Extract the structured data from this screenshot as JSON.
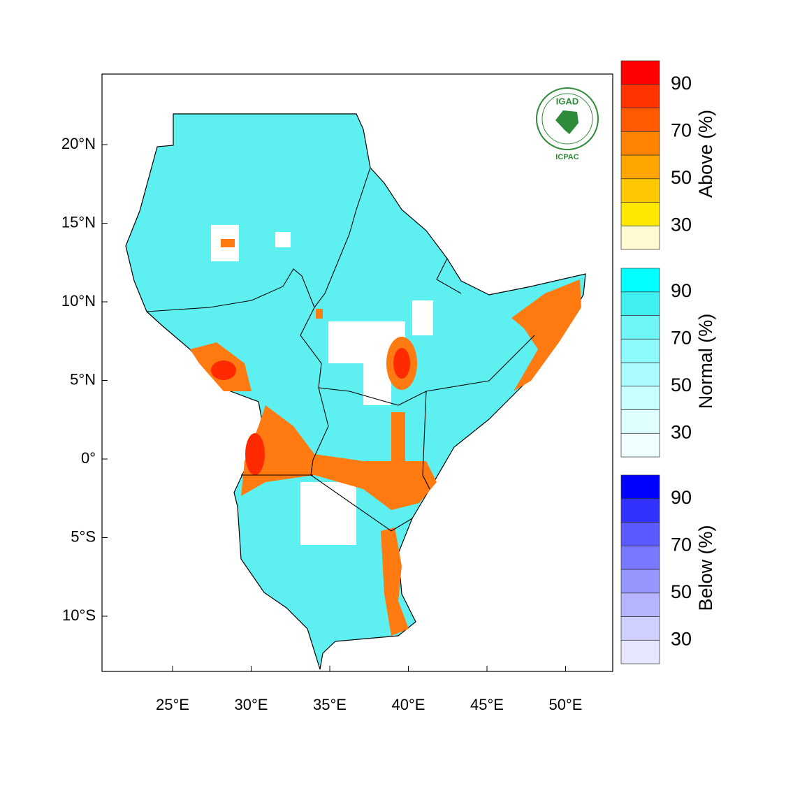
{
  "map": {
    "lon_ticks": [
      {
        "value": 25,
        "label": "25°E"
      },
      {
        "value": 30,
        "label": "30°E"
      },
      {
        "value": 35,
        "label": "35°E"
      },
      {
        "value": 40,
        "label": "40°E"
      },
      {
        "value": 45,
        "label": "45°E"
      },
      {
        "value": 50,
        "label": "50°E"
      }
    ],
    "lat_ticks": [
      {
        "value": 20,
        "label": "20°N"
      },
      {
        "value": 15,
        "label": "15°N"
      },
      {
        "value": 10,
        "label": "10°N"
      },
      {
        "value": 5,
        "label": "5°N"
      },
      {
        "value": 0,
        "label": "0°"
      },
      {
        "value": -5,
        "label": "5°S"
      },
      {
        "value": -10,
        "label": "10°S"
      }
    ],
    "logo": {
      "name": "IGAD",
      "centre": "ICPAC"
    }
  },
  "colorbars": [
    {
      "title": "Above (%)",
      "range": [
        20,
        100
      ],
      "ticks": [
        30,
        50,
        70,
        90
      ],
      "colors": [
        "#fffad2",
        "#ffe800",
        "#ffc800",
        "#ffa500",
        "#ff8200",
        "#ff5a00",
        "#ff3200",
        "#ff0000"
      ]
    },
    {
      "title": "Normal (%)",
      "range": [
        20,
        100
      ],
      "ticks": [
        30,
        50,
        70,
        90
      ],
      "colors": [
        "#f0ffff",
        "#e0ffff",
        "#c8ffff",
        "#aafcfc",
        "#8cfafa",
        "#6ef5f5",
        "#40f0f0",
        "#00ffff"
      ]
    },
    {
      "title": "Below (%)",
      "range": [
        20,
        100
      ],
      "ticks": [
        30,
        50,
        70,
        90
      ],
      "colors": [
        "#e6e6ff",
        "#d0d0ff",
        "#b4b4ff",
        "#9696ff",
        "#7878ff",
        "#5a5aff",
        "#3232ff",
        "#0000ff"
      ]
    }
  ]
}
